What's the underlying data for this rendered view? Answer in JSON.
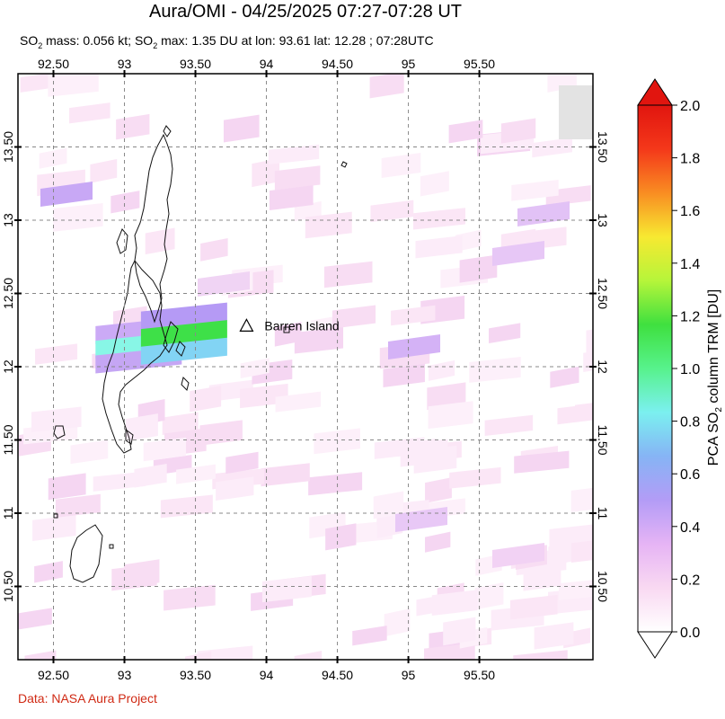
{
  "header": {
    "title": "Aura/OMI - 04/25/2025 07:27-07:28 UT",
    "subtitle_pre": "SO",
    "subtitle_sub": "2",
    "subtitle_mid": " mass: 0.056 kt; SO",
    "subtitle_sub2": "2",
    "subtitle_post": " max: 1.35 DU at lon: 93.61 lat: 12.28 ; 07:28UTC"
  },
  "map": {
    "lon_ticks": [
      "92.50",
      "93",
      "93.50",
      "94",
      "94.50",
      "95",
      "95.50"
    ],
    "lon_values": [
      92.5,
      93,
      93.5,
      94,
      94.5,
      95,
      95.5
    ],
    "lat_ticks": [
      "13.50",
      "13",
      "12.50",
      "12",
      "11.50",
      "11",
      "10.50"
    ],
    "lat_values": [
      13.5,
      13,
      12.5,
      12,
      11.5,
      11,
      10.5
    ],
    "lon_range": [
      92.25,
      96.3
    ],
    "lat_range": [
      10.0,
      14.0
    ],
    "volcano": {
      "name": "Barren Island",
      "lon": 93.86,
      "lat": 12.28
    },
    "hotspot": [
      {
        "lon": 93.1,
        "lat": 12.24,
        "color": "#cbaaf6"
      },
      {
        "lon": 93.42,
        "lat": 12.34,
        "color": "#b59af5"
      },
      {
        "lon": 93.1,
        "lat": 12.14,
        "color": "#88f6e6"
      },
      {
        "lon": 93.42,
        "lat": 12.22,
        "color": "#3ee048"
      },
      {
        "lon": 93.1,
        "lat": 12.04,
        "color": "#c5a6f4"
      },
      {
        "lon": 93.42,
        "lat": 12.1,
        "color": "#82d4f4"
      }
    ]
  },
  "colorbar": {
    "label_pre": "PCA SO",
    "label_sub": "2",
    "label_post": " column TRM [DU]",
    "ticks": [
      "2.0",
      "1.8",
      "1.6",
      "1.4",
      "1.2",
      "1.0",
      "0.8",
      "0.6",
      "0.4",
      "0.2",
      "0.0"
    ],
    "range": [
      0.0,
      2.0
    ],
    "stops": [
      "#ffffff",
      "#f9d9f2",
      "#e6b4f5",
      "#b39cf6",
      "#86b4f5",
      "#7bf0f0",
      "#57f28c",
      "#3fe03f",
      "#b6f53a",
      "#f7e931",
      "#f98d22",
      "#f4381a",
      "#e1150f"
    ]
  },
  "footer": {
    "credit": "Data: NASA Aura Project"
  }
}
